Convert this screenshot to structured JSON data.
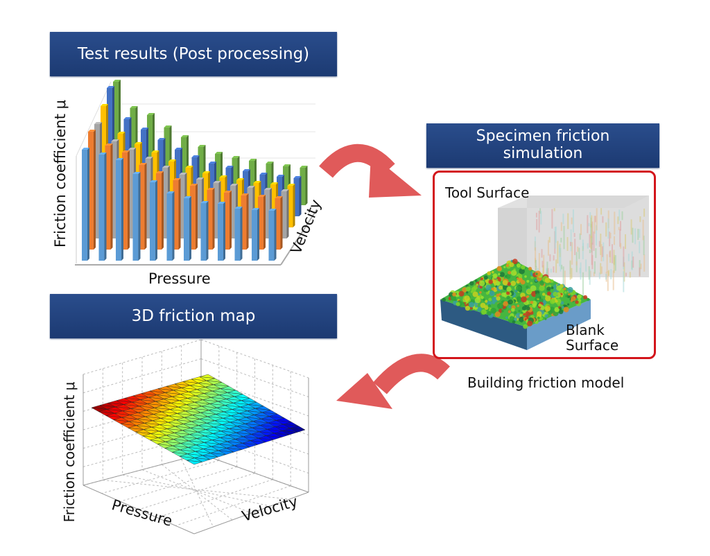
{
  "test_results": {
    "title": "Test results (Post processing)",
    "y_label": "Friction coefficient μ",
    "x_label": "Pressure",
    "z_label": "Velocity",
    "series_colors": [
      "#5b9bd5",
      "#ed7d31",
      "#a5a5a5",
      "#ffc000",
      "#4472c4",
      "#70ad47"
    ],
    "bar_values_relative": [
      [
        160,
        153,
        145,
        125,
        113,
        97,
        90,
        83,
        82,
        75,
        73,
        72
      ],
      [
        170,
        150,
        140,
        122,
        110,
        100,
        92,
        86,
        82,
        78,
        76,
        74
      ],
      [
        165,
        140,
        128,
        115,
        102,
        92,
        85,
        80,
        76,
        73,
        70,
        68
      ],
      [
        175,
        135,
        120,
        108,
        95,
        86,
        78,
        72,
        68,
        64,
        62,
        60
      ],
      [
        185,
        140,
        125,
        110,
        96,
        85,
        76,
        70,
        65,
        60,
        57,
        55
      ],
      [
        178,
        140,
        130,
        112,
        98,
        84,
        74,
        68,
        64,
        60,
        56,
        54
      ]
    ]
  },
  "simulation": {
    "title_line1": "Specimen friction",
    "title_line2": "simulation",
    "tool_label": "Tool Surface",
    "blank_label_line1": "Blank",
    "blank_label_line2": "Surface",
    "caption": "Building friction model",
    "frame_color": "#d3151b"
  },
  "friction_map": {
    "title": "3D friction map",
    "y_label": "Friction coefficient μ",
    "x_label": "Pressure",
    "z_label": "Velocity"
  },
  "arrow_color": "#e05a5a",
  "header_color": "#1f3f7a"
}
